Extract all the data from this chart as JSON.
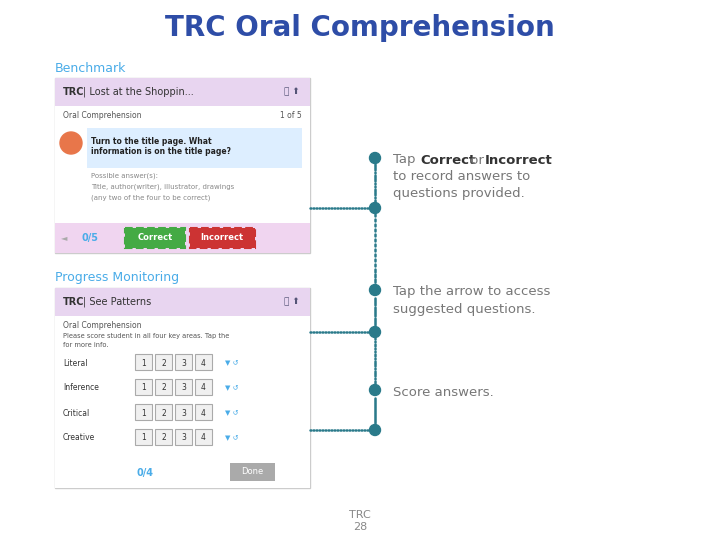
{
  "title": "TRC Oral Comprehension",
  "title_color": "#2E4DA7",
  "title_fontsize": 20,
  "bg_color": "#ffffff",
  "section1_label": "Benchmark",
  "section2_label": "Progress Monitoring",
  "section_label_color": "#4AACE8",
  "section_label_fontsize": 9,
  "bullet1_line1_plain": "Tap ",
  "bullet1_line1_bold1": "Correct",
  "bullet1_line1_mid": " or ",
  "bullet1_line1_bold2": "Incorrect",
  "bullet1_line2": "to record answers to",
  "bullet1_line3": "questions provided.",
  "bullet2_line1": "Tap the arrow to access",
  "bullet2_line2": "suggested questions.",
  "bullet3_line1": "Score answers.",
  "footer_line1": "TRC",
  "footer_line2": "28",
  "footer_color": "#888888",
  "footer_fontsize": 8,
  "dot_color": "#2A7A8A",
  "text_color": "#777777",
  "text_fontsize": 9.5,
  "annot_bold_color": "#333333"
}
